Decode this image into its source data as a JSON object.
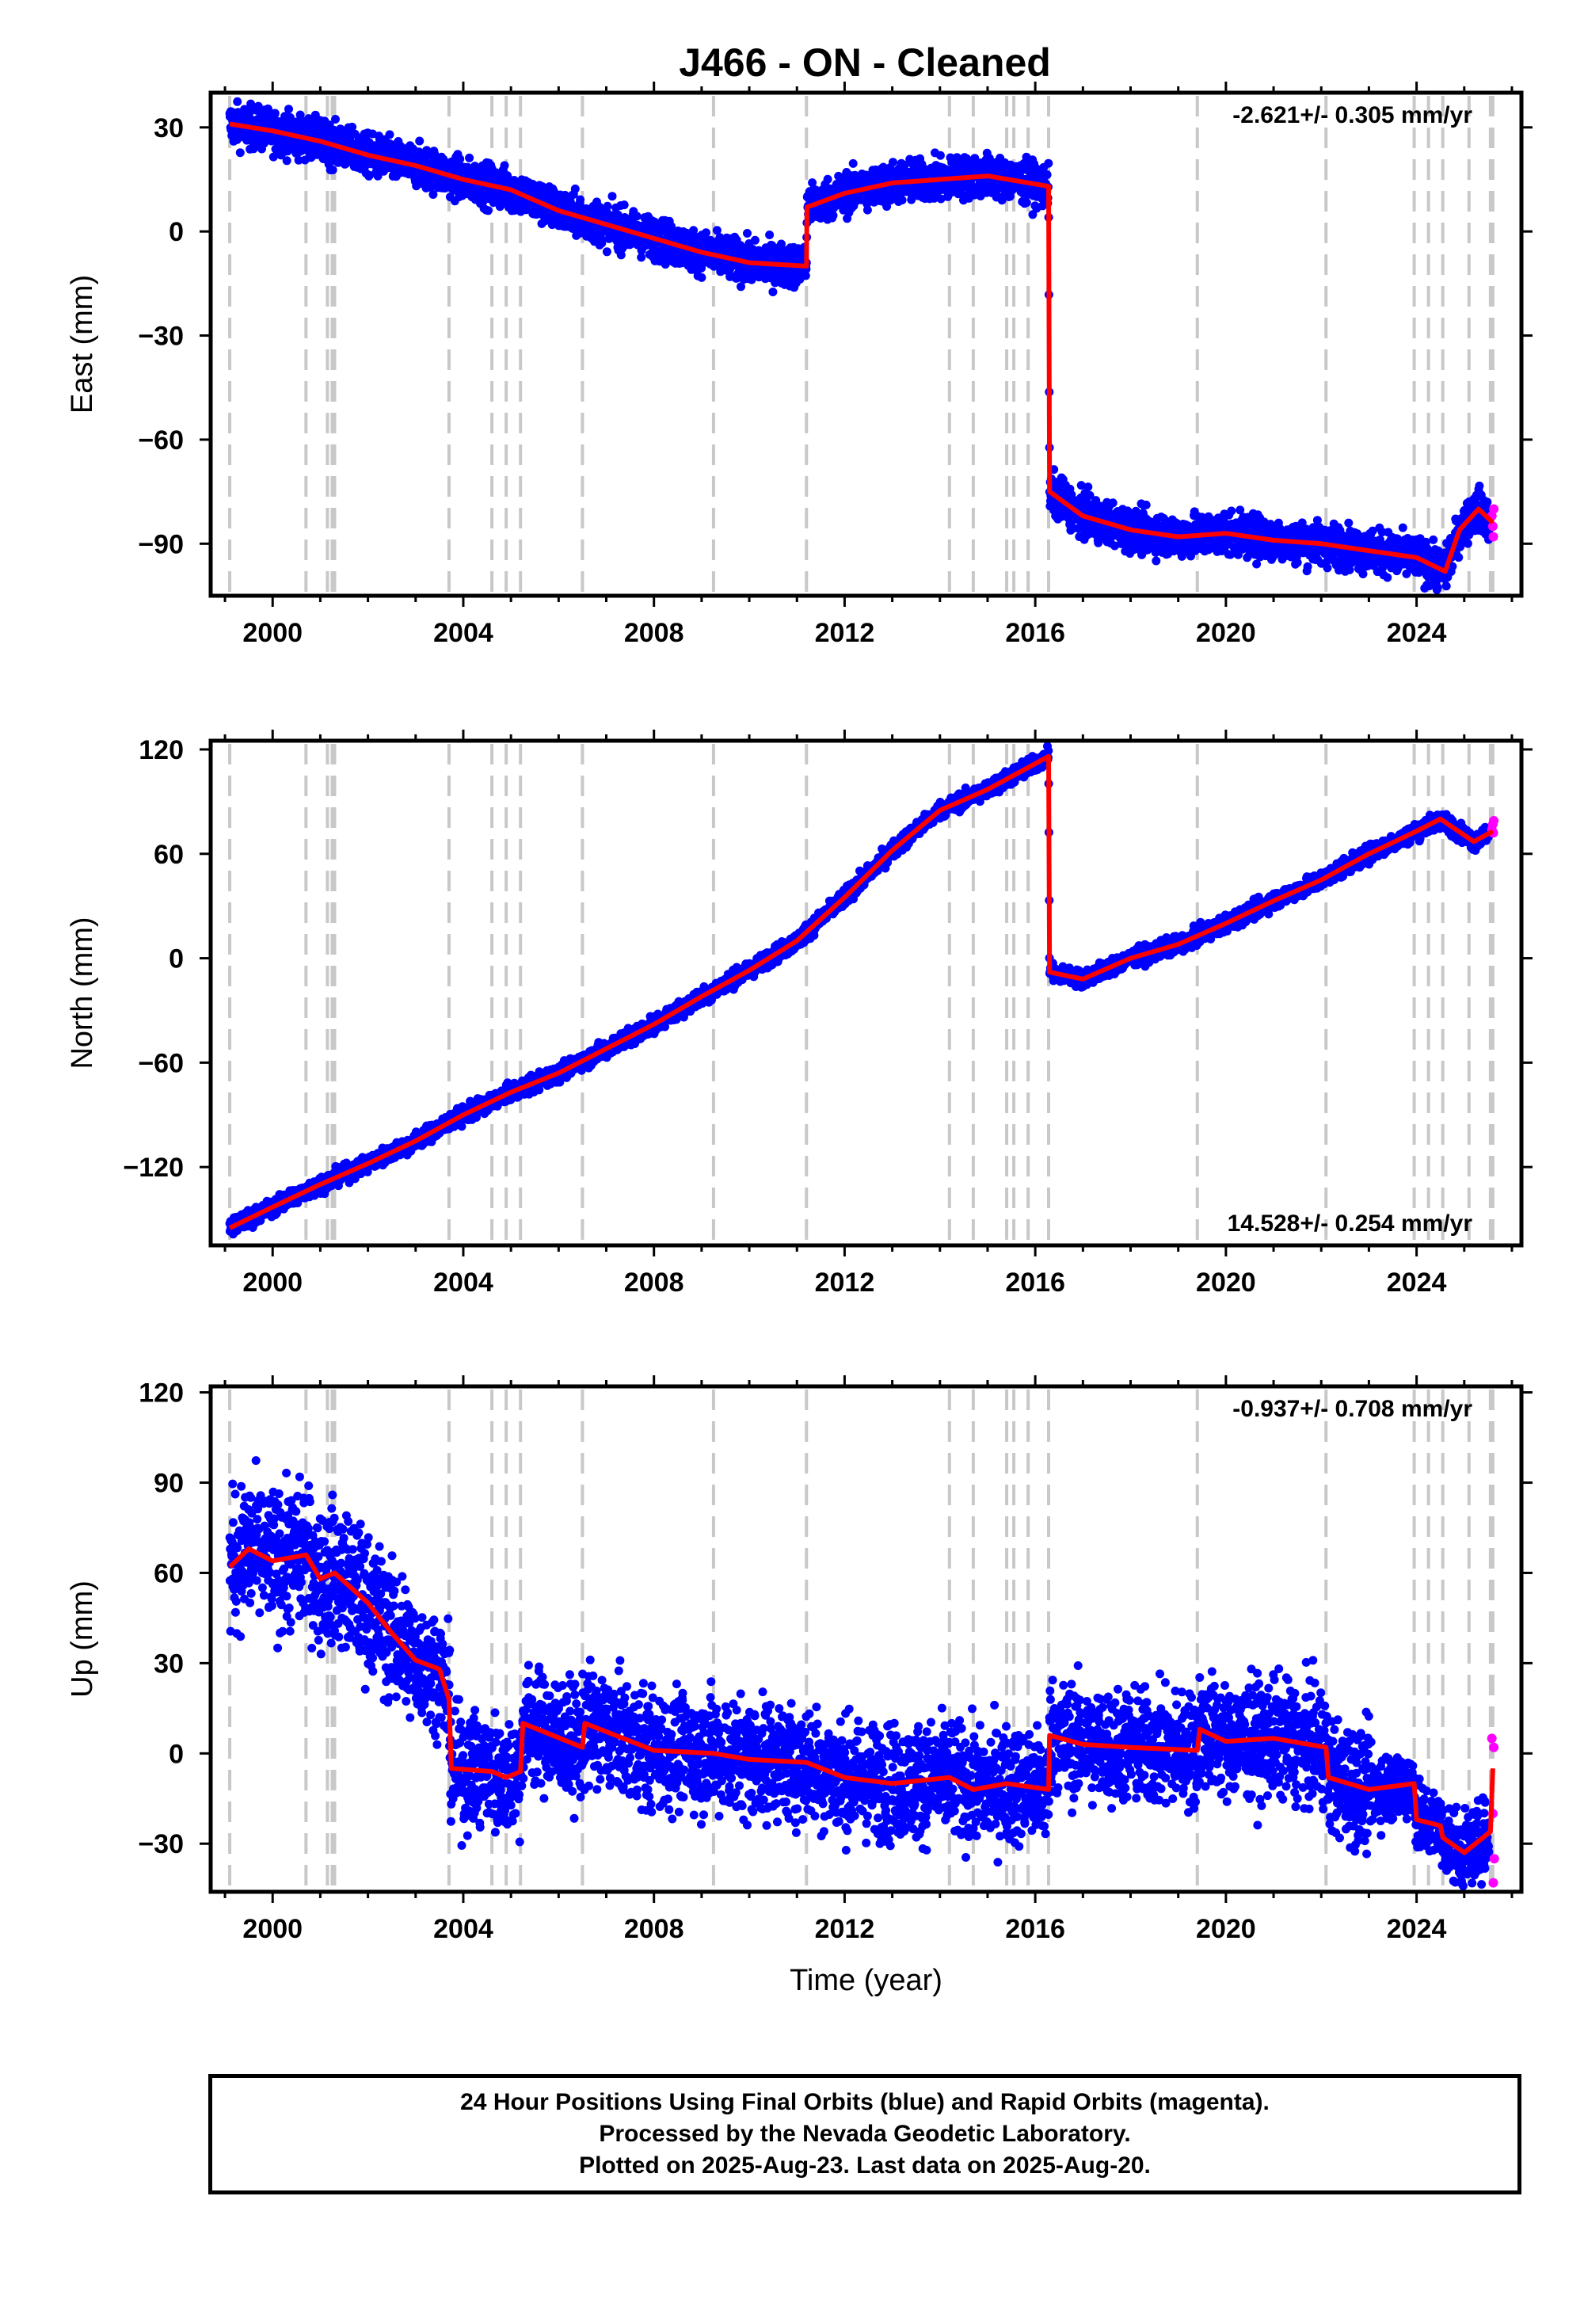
{
  "title": "J466  - ON - Cleaned",
  "chart_data": [
    {
      "type": "scatter",
      "name": "east",
      "ylabel": "East (mm)",
      "xlabel": "",
      "rate": "-2.621+/- 0.305 mm/yr",
      "rate_position": "top-right",
      "xlim": [
        1998.7,
        2026.2
      ],
      "ylim": [
        -105,
        40
      ],
      "xticks": [
        2000,
        2004,
        2008,
        2012,
        2016,
        2020,
        2024
      ],
      "yticks": [
        30,
        0,
        -30,
        -60,
        -90
      ],
      "ytick_labels": [
        "30",
        "0",
        "−30",
        "−60",
        "−90"
      ],
      "colors": {
        "final": "#0000ff",
        "rapid": "#ff00ff",
        "model": "#ff0000",
        "event_lines": "#c8c8c8"
      },
      "event_lines": [
        1999.1,
        2000.7,
        2001.15,
        2001.25,
        2001.3,
        2003.7,
        2004.6,
        2004.9,
        2005.2,
        2006.5,
        2009.25,
        2011.2,
        2014.2,
        2014.7,
        2015.4,
        2015.55,
        2015.85,
        2016.28,
        2019.4,
        2022.1,
        2023.95,
        2024.25,
        2024.55,
        2025.1,
        2025.55,
        2025.6
      ],
      "model_trend": [
        [
          1999.1,
          31
        ],
        [
          2000.0,
          29
        ],
        [
          2001.0,
          26
        ],
        [
          2002.0,
          22
        ],
        [
          2003.0,
          19
        ],
        [
          2004.0,
          15
        ],
        [
          2005.0,
          12
        ],
        [
          2006.0,
          6
        ],
        [
          2007.0,
          2
        ],
        [
          2008.0,
          -2
        ],
        [
          2009.0,
          -6
        ],
        [
          2010.0,
          -9
        ],
        [
          2011.2,
          -10
        ],
        [
          2011.21,
          7
        ],
        [
          2012.0,
          11
        ],
        [
          2013.0,
          14
        ],
        [
          2014.0,
          15
        ],
        [
          2015.0,
          16
        ],
        [
          2016.28,
          13
        ],
        [
          2016.3,
          -75
        ],
        [
          2017.0,
          -82
        ],
        [
          2018.0,
          -86
        ],
        [
          2019.0,
          -88
        ],
        [
          2020.0,
          -87
        ],
        [
          2021.0,
          -89
        ],
        [
          2022.0,
          -90
        ],
        [
          2023.0,
          -92
        ],
        [
          2024.0,
          -94
        ],
        [
          2024.6,
          -98
        ],
        [
          2024.9,
          -86
        ],
        [
          2025.3,
          -80
        ],
        [
          2025.6,
          -84
        ]
      ],
      "final_scatter": 2.5,
      "rapid_points": [
        [
          2025.58,
          -82
        ],
        [
          2025.6,
          -85
        ],
        [
          2025.61,
          -88
        ],
        [
          2025.62,
          -80
        ]
      ]
    },
    {
      "type": "scatter",
      "name": "north",
      "ylabel": "North (mm)",
      "xlabel": "",
      "rate": "14.528+/- 0.254 mm/yr",
      "rate_position": "bottom-right",
      "xlim": [
        1998.7,
        2026.2
      ],
      "ylim": [
        -165,
        125
      ],
      "xticks": [
        2000,
        2004,
        2008,
        2012,
        2016,
        2020,
        2024
      ],
      "yticks": [
        120,
        60,
        0,
        -60,
        -120
      ],
      "ytick_labels": [
        "120",
        "60",
        "0",
        "−60",
        "−120"
      ],
      "colors": {
        "final": "#0000ff",
        "rapid": "#ff00ff",
        "model": "#ff0000",
        "event_lines": "#c8c8c8"
      },
      "event_lines": [
        1999.1,
        2000.7,
        2001.15,
        2001.25,
        2001.3,
        2003.7,
        2004.6,
        2004.9,
        2005.2,
        2006.5,
        2009.25,
        2011.2,
        2014.2,
        2014.7,
        2015.4,
        2015.55,
        2015.85,
        2016.28,
        2019.4,
        2022.1,
        2023.95,
        2024.25,
        2024.55,
        2025.1,
        2025.55,
        2025.6
      ],
      "model_trend": [
        [
          1999.1,
          -155
        ],
        [
          2000.0,
          -143
        ],
        [
          2001.0,
          -130
        ],
        [
          2002.0,
          -118
        ],
        [
          2003.0,
          -105
        ],
        [
          2004.0,
          -90
        ],
        [
          2005.0,
          -77
        ],
        [
          2006.0,
          -66
        ],
        [
          2007.0,
          -52
        ],
        [
          2008.0,
          -38
        ],
        [
          2009.0,
          -22
        ],
        [
          2010.0,
          -7
        ],
        [
          2011.0,
          10
        ],
        [
          2012.0,
          35
        ],
        [
          2013.0,
          62
        ],
        [
          2014.0,
          85
        ],
        [
          2015.0,
          97
        ],
        [
          2016.28,
          116
        ],
        [
          2016.3,
          -8
        ],
        [
          2017.0,
          -12
        ],
        [
          2018.0,
          0
        ],
        [
          2019.0,
          8
        ],
        [
          2020.0,
          20
        ],
        [
          2021.0,
          33
        ],
        [
          2022.0,
          45
        ],
        [
          2023.0,
          60
        ],
        [
          2024.0,
          73
        ],
        [
          2024.5,
          80
        ],
        [
          2025.2,
          67
        ],
        [
          2025.6,
          73
        ]
      ],
      "final_scatter": 2.0,
      "rapid_points": [
        [
          2025.58,
          74
        ],
        [
          2025.6,
          77
        ],
        [
          2025.61,
          72
        ],
        [
          2025.62,
          79
        ]
      ]
    },
    {
      "type": "scatter",
      "name": "up",
      "ylabel": "Up (mm)",
      "xlabel": "Time (year)",
      "rate": "-0.937+/- 0.708 mm/yr",
      "rate_position": "top-right",
      "xlim": [
        1998.7,
        2026.2
      ],
      "ylim": [
        -46,
        122
      ],
      "xticks": [
        2000,
        2004,
        2008,
        2012,
        2016,
        2020,
        2024
      ],
      "yticks": [
        120,
        90,
        60,
        30,
        0,
        -30
      ],
      "ytick_labels": [
        "120",
        "90",
        "60",
        "30",
        "0",
        "−30"
      ],
      "colors": {
        "final": "#0000ff",
        "rapid": "#ff00ff",
        "model": "#ff0000",
        "event_lines": "#c8c8c8"
      },
      "event_lines": [
        1999.1,
        2000.7,
        2001.15,
        2001.25,
        2001.3,
        2003.7,
        2004.6,
        2004.9,
        2005.2,
        2006.5,
        2009.25,
        2011.2,
        2014.2,
        2014.7,
        2015.4,
        2015.55,
        2015.85,
        2016.28,
        2019.4,
        2022.1,
        2023.95,
        2024.25,
        2024.55,
        2025.1,
        2025.55,
        2025.6
      ],
      "model_trend": [
        [
          1999.1,
          62
        ],
        [
          1999.5,
          68
        ],
        [
          2000.0,
          64
        ],
        [
          2000.7,
          66
        ],
        [
          2001.0,
          58
        ],
        [
          2001.3,
          60
        ],
        [
          2002.0,
          50
        ],
        [
          2002.5,
          40
        ],
        [
          2003.0,
          31
        ],
        [
          2003.5,
          28
        ],
        [
          2003.7,
          18
        ],
        [
          2003.75,
          -5
        ],
        [
          2004.6,
          -6
        ],
        [
          2004.9,
          -8
        ],
        [
          2005.2,
          -6
        ],
        [
          2005.25,
          10
        ],
        [
          2006.5,
          2
        ],
        [
          2006.55,
          10
        ],
        [
          2008.0,
          1
        ],
        [
          2009.25,
          0
        ],
        [
          2010.0,
          -2
        ],
        [
          2011.2,
          -3
        ],
        [
          2012.0,
          -8
        ],
        [
          2013.0,
          -10
        ],
        [
          2014.2,
          -8
        ],
        [
          2014.7,
          -12
        ],
        [
          2015.4,
          -10
        ],
        [
          2016.28,
          -12
        ],
        [
          2016.3,
          6
        ],
        [
          2017.0,
          3
        ],
        [
          2018.0,
          2
        ],
        [
          2019.4,
          1
        ],
        [
          2019.45,
          8
        ],
        [
          2020.0,
          4
        ],
        [
          2021.0,
          5
        ],
        [
          2022.1,
          2
        ],
        [
          2022.15,
          -8
        ],
        [
          2023.0,
          -12
        ],
        [
          2023.95,
          -10
        ],
        [
          2024.0,
          -22
        ],
        [
          2024.5,
          -24
        ],
        [
          2024.55,
          -28
        ],
        [
          2025.0,
          -33
        ],
        [
          2025.55,
          -26
        ],
        [
          2025.6,
          -5
        ]
      ],
      "final_scatter": 8.0,
      "rapid_points": [
        [
          2025.58,
          5
        ],
        [
          2025.6,
          -20
        ],
        [
          2025.61,
          -43
        ],
        [
          2025.62,
          2
        ],
        [
          2025.63,
          -35
        ]
      ]
    }
  ],
  "footer": {
    "line1": "24 Hour Positions Using Final Orbits (blue) and Rapid Orbits (magenta).",
    "line2": "Processed by the Nevada Geodetic Laboratory.",
    "line3": "Plotted on 2025-Aug-23. Last data on 2025-Aug-20."
  }
}
